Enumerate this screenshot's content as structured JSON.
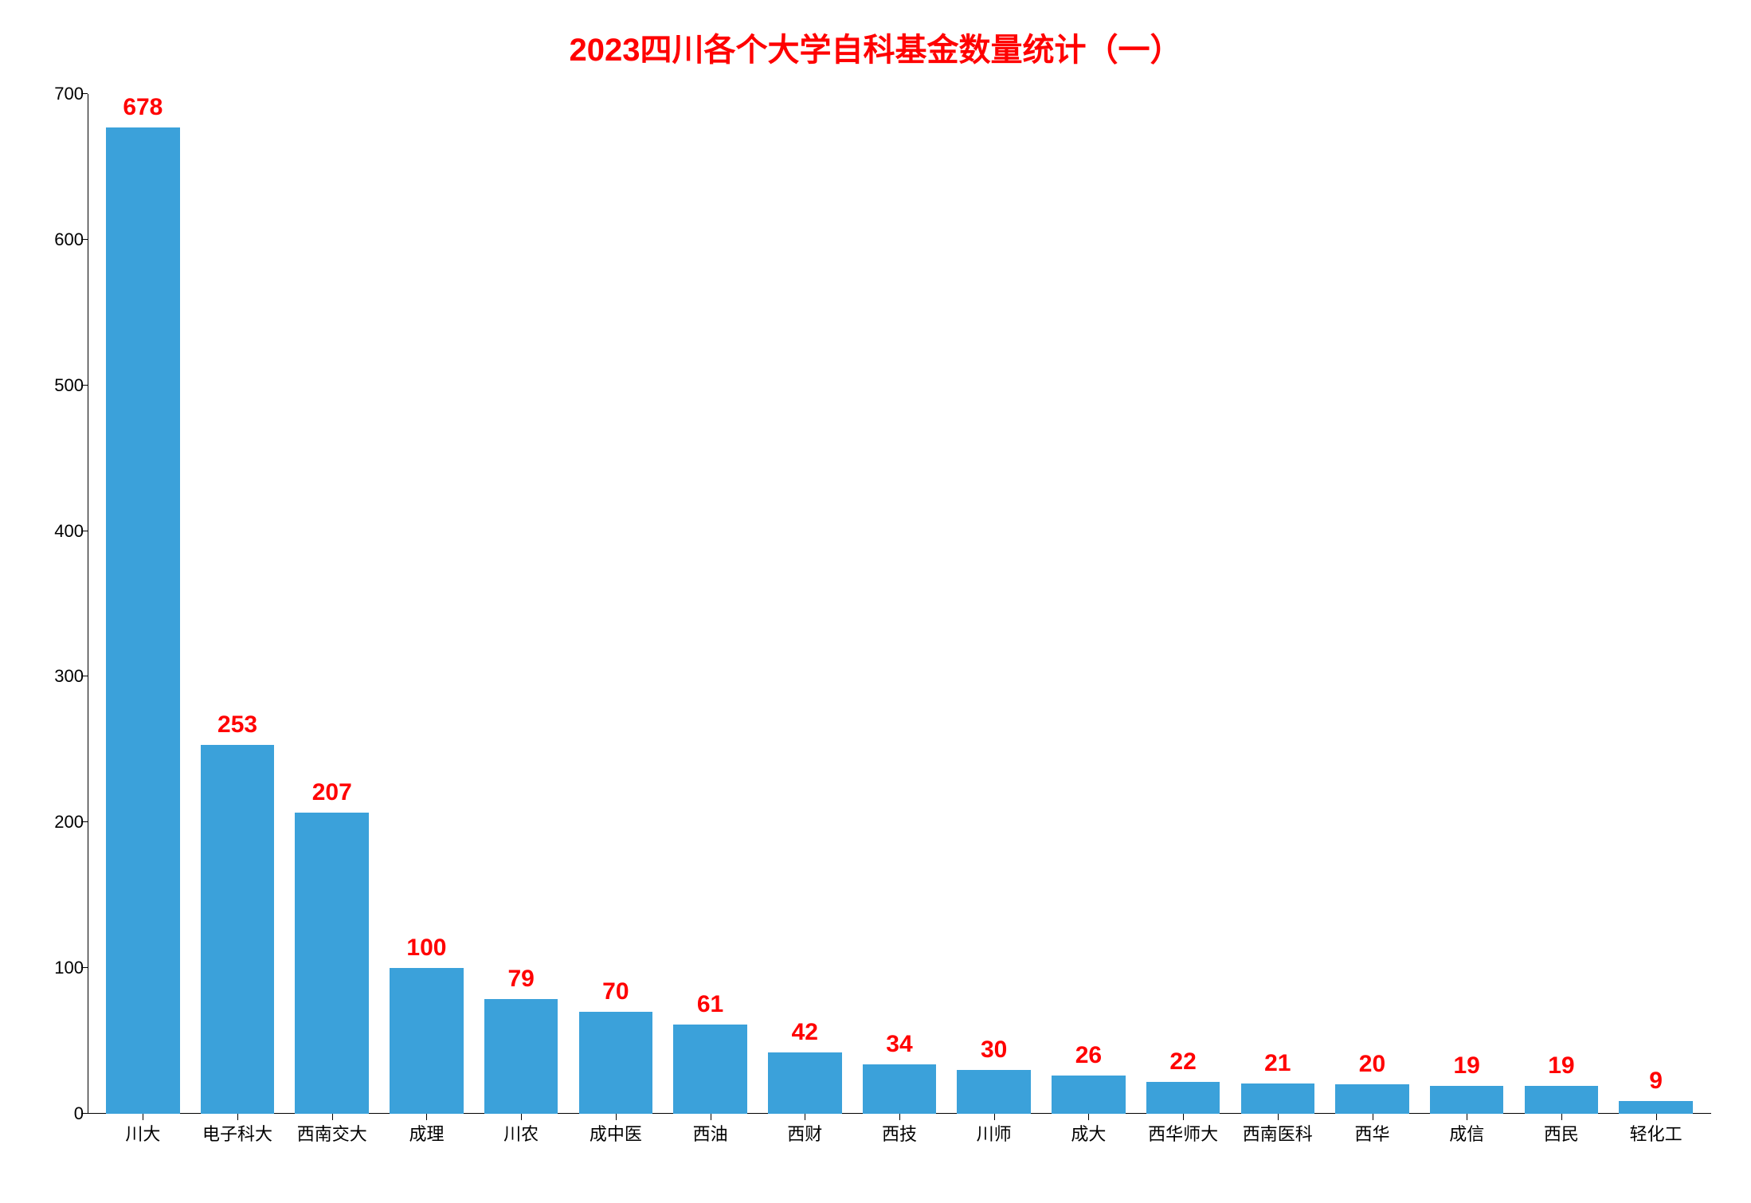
{
  "chart": {
    "type": "bar",
    "title": "2023四川各个大学自科基金数量统计（一）",
    "title_color": "#ff0000",
    "title_fontsize": 40,
    "categories": [
      "川大",
      "电子科大",
      "西南交大",
      "成理",
      "川农",
      "成中医",
      "西油",
      "西财",
      "西技",
      "川师",
      "成大",
      "西华师大",
      "西南医科",
      "西华",
      "成信",
      "西民",
      "轻化工"
    ],
    "values": [
      678,
      253,
      207,
      100,
      79,
      70,
      61,
      42,
      34,
      30,
      26,
      22,
      21,
      20,
      19,
      19,
      9
    ],
    "bar_color": "#3ba1da",
    "value_label_color": "#ff0000",
    "value_label_fontsize": 30,
    "x_label_color": "#000000",
    "x_label_fontsize": 22,
    "y_label_color": "#000000",
    "y_label_fontsize": 22,
    "ylim": [
      0,
      700
    ],
    "ytick_step": 100,
    "yticks": [
      0,
      100,
      200,
      300,
      400,
      500,
      600,
      700
    ],
    "background_color": "#ffffff",
    "axis_color": "#000000",
    "bar_width": 0.78
  }
}
